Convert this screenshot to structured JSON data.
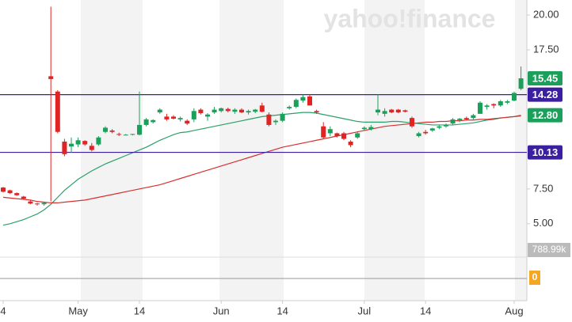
{
  "chart_data": {
    "type": "candlestick",
    "watermark": "yahoo!finance",
    "up_color": "#1aa05a",
    "down_color": "#e02424",
    "categories": [
      null,
      null,
      null,
      null,
      null,
      null,
      null,
      null,
      null,
      null,
      null,
      null,
      null,
      null,
      null,
      null,
      null,
      null,
      null,
      null,
      null,
      null,
      null,
      null,
      null,
      null,
      null,
      null,
      null,
      null,
      null,
      null,
      null,
      null,
      null,
      null,
      null,
      null,
      null,
      null,
      null,
      null,
      null,
      null,
      null,
      null,
      null,
      null,
      null,
      null,
      null,
      null,
      null,
      null,
      null,
      null,
      null,
      null,
      null,
      null,
      null,
      null,
      null,
      null,
      null,
      null,
      null,
      null,
      null,
      null,
      null,
      null,
      null,
      null,
      null,
      null,
      null
    ],
    "open": [
      7.6,
      7.4,
      7.2,
      6.95,
      6.6,
      6.45,
      6.4,
      15.6,
      14.5,
      10.9,
      10.55,
      10.7,
      10.95,
      10.6,
      10.7,
      11.6,
      11.7,
      11.45,
      11.4,
      11.4,
      11.4,
      12.1,
      12.3,
      13.0,
      12.7,
      12.7,
      12.5,
      12.4,
      12.5,
      13.2,
      12.7,
      13.0,
      13.1,
      13.25,
      13.05,
      13.2,
      13.0,
      13.05,
      13.5,
      12.85,
      12.3,
      12.4,
      13.3,
      13.4,
      13.85,
      14.15,
      13.1,
      12.0,
      11.5,
      11.5,
      11.5,
      10.9,
      11.2,
      11.8,
      11.8,
      13.0,
      12.9,
      13.2,
      13.2,
      13.15,
      12.6,
      11.3,
      11.6,
      11.7,
      11.9,
      12.0,
      12.2,
      12.45,
      12.6,
      12.6,
      12.9,
      13.4,
      13.6,
      13.5,
      13.7,
      13.85,
      14.7
    ],
    "high": [
      7.65,
      7.45,
      7.25,
      7.0,
      6.7,
      6.5,
      6.55,
      20.6,
      14.6,
      11.1,
      11.2,
      11.2,
      11.0,
      10.8,
      11.3,
      12.0,
      11.8,
      11.55,
      11.45,
      11.45,
      14.5,
      12.6,
      12.5,
      13.3,
      12.9,
      12.8,
      12.7,
      12.5,
      13.3,
      13.3,
      12.95,
      13.4,
      13.35,
      13.35,
      13.3,
      13.3,
      13.2,
      13.25,
      13.7,
      13.0,
      12.5,
      13.0,
      13.5,
      14.0,
      14.3,
      14.3,
      13.2,
      12.3,
      12.0,
      11.55,
      11.6,
      11.0,
      11.6,
      12.0,
      12.1,
      14.3,
      13.3,
      13.25,
      13.25,
      13.2,
      12.7,
      11.6,
      11.75,
      11.9,
      12.1,
      12.2,
      12.6,
      12.6,
      12.7,
      12.9,
      13.8,
      13.6,
      13.65,
      13.9,
      13.9,
      14.5,
      16.3
    ],
    "low": [
      7.25,
      7.15,
      7.0,
      6.75,
      6.4,
      6.3,
      6.3,
      6.6,
      11.5,
      9.85,
      10.1,
      10.5,
      10.6,
      10.2,
      10.6,
      11.5,
      11.5,
      11.3,
      11.35,
      11.35,
      11.35,
      12.0,
      12.2,
      12.9,
      12.4,
      12.5,
      12.35,
      12.1,
      12.3,
      12.85,
      12.4,
      12.9,
      13.0,
      13.0,
      12.9,
      12.95,
      12.85,
      12.95,
      13.0,
      12.0,
      12.1,
      12.3,
      13.2,
      13.3,
      13.7,
      13.5,
      12.9,
      11.1,
      11.3,
      11.2,
      11.0,
      10.5,
      11.1,
      11.7,
      11.7,
      12.8,
      12.7,
      12.95,
      12.95,
      13.0,
      11.9,
      11.2,
      11.4,
      11.6,
      11.8,
      11.9,
      12.1,
      12.3,
      12.45,
      12.5,
      12.9,
      13.2,
      13.3,
      13.4,
      13.6,
      13.8,
      14.6
    ],
    "close": [
      7.3,
      7.2,
      7.05,
      6.8,
      6.45,
      6.4,
      6.5,
      15.4,
      11.6,
      10.0,
      10.75,
      11.0,
      10.7,
      10.3,
      11.2,
      11.9,
      11.6,
      11.4,
      11.4,
      11.45,
      12.1,
      12.5,
      12.45,
      13.2,
      12.5,
      12.55,
      12.6,
      12.2,
      13.1,
      12.95,
      12.85,
      13.2,
      13.3,
      13.1,
      13.2,
      13.0,
      13.1,
      13.2,
      13.05,
      12.1,
      12.4,
      12.9,
      13.4,
      13.9,
      14.1,
      13.5,
      13.0,
      11.2,
      11.8,
      11.3,
      11.1,
      10.65,
      11.5,
      11.9,
      11.95,
      13.2,
      13.1,
      13.0,
      13.0,
      13.05,
      12.0,
      11.5,
      11.5,
      11.85,
      12.0,
      12.1,
      12.5,
      12.55,
      12.5,
      12.8,
      13.7,
      13.5,
      13.5,
      13.8,
      13.8,
      14.4,
      15.45
    ],
    "series": [
      {
        "color": "#2aa06a",
        "values": [
          4.9,
          5.0,
          5.15,
          5.3,
          5.5,
          5.7,
          6.0,
          6.4,
          6.9,
          7.4,
          7.8,
          8.2,
          8.5,
          8.8,
          9.05,
          9.3,
          9.5,
          9.7,
          9.9,
          10.1,
          10.3,
          10.5,
          10.75,
          11.0,
          11.2,
          11.4,
          11.55,
          11.6,
          11.7,
          11.8,
          11.9,
          12.0,
          12.1,
          12.2,
          12.3,
          12.4,
          12.5,
          12.6,
          12.7,
          12.75,
          12.8,
          12.85,
          12.9,
          12.95,
          13.0,
          13.0,
          12.95,
          12.85,
          12.75,
          12.65,
          12.55,
          12.45,
          12.35,
          12.3,
          12.3,
          12.3,
          12.3,
          12.35,
          12.35,
          12.3,
          12.25,
          12.2,
          12.15,
          12.1,
          12.1,
          12.1,
          12.1,
          12.15,
          12.2,
          12.25,
          12.35,
          12.45,
          12.5,
          12.6,
          12.65,
          12.7,
          12.8
        ]
      },
      {
        "color": "#d83030",
        "values": [
          6.9,
          6.85,
          6.8,
          6.75,
          6.7,
          6.6,
          6.55,
          6.5,
          6.5,
          6.55,
          6.6,
          6.65,
          6.7,
          6.8,
          6.9,
          7.0,
          7.1,
          7.2,
          7.3,
          7.4,
          7.5,
          7.6,
          7.7,
          7.8,
          7.95,
          8.1,
          8.25,
          8.4,
          8.55,
          8.7,
          8.85,
          9.0,
          9.15,
          9.3,
          9.45,
          9.6,
          9.75,
          9.9,
          10.05,
          10.2,
          10.35,
          10.5,
          10.6,
          10.7,
          10.8,
          10.9,
          11.0,
          11.1,
          11.2,
          11.3,
          11.4,
          11.5,
          11.6,
          11.7,
          11.8,
          11.9,
          12.0,
          12.05,
          12.1,
          12.15,
          12.2,
          12.25,
          12.3,
          12.3,
          12.35,
          12.35,
          12.4,
          12.4,
          12.45,
          12.45,
          12.5,
          12.5,
          12.55,
          12.6,
          12.65,
          12.7,
          12.75
        ]
      }
    ],
    "ylim": [
      2.6,
      21.08
    ],
    "yticks": [
      {
        "value": 20,
        "label": "20.00"
      },
      {
        "value": 17.5,
        "label": "17.50"
      },
      {
        "value": 7.5,
        "label": "7.50"
      },
      {
        "value": 5,
        "label": "5.00"
      }
    ],
    "xticks": [
      {
        "value": 0,
        "label": "4"
      },
      {
        "value": 11,
        "label": "May"
      },
      {
        "value": 20,
        "label": "14"
      },
      {
        "value": 32,
        "label": "Jun"
      },
      {
        "value": 41,
        "label": "14"
      },
      {
        "value": 53,
        "label": "Jul"
      },
      {
        "value": 62,
        "label": "14"
      },
      {
        "value": 75,
        "label": "Aug"
      }
    ],
    "hlines": [
      {
        "value": 14.28,
        "color": "#3a1fa0"
      },
      {
        "value": 10.13,
        "color": "#3a1fa0"
      }
    ],
    "price_labels": [
      {
        "value": 15.45,
        "label": "15.45",
        "color": "#1aa05a"
      },
      {
        "value": 14.28,
        "label": "14.28",
        "color": "#3a1fa0"
      },
      {
        "value": 12.8,
        "label": "12.80",
        "color": "#1aa05a"
      },
      {
        "value": 10.13,
        "label": "10.13",
        "color": "#3a1fa0"
      }
    ],
    "volume_label": "788.99k",
    "indicator_label": "0"
  }
}
